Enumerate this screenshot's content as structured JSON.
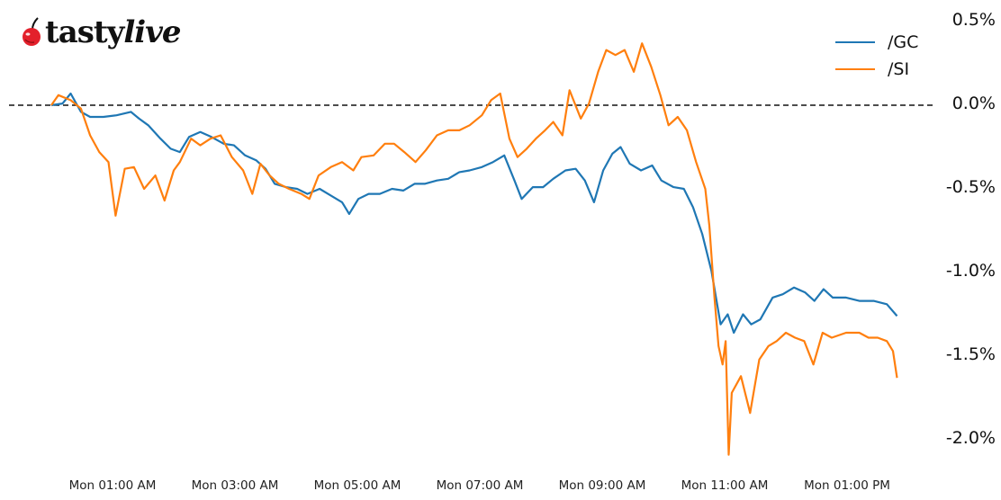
{
  "logo": {
    "icon": "cherry-icon",
    "text_regular": "tasty",
    "text_italic": "live",
    "cherry_color": "#e3202b"
  },
  "chart_data": {
    "type": "line",
    "title": "",
    "xlabel": "",
    "ylabel": "",
    "x_unit": "minutes since Mon 00:00 AM",
    "xlim": [
      -20,
      860
    ],
    "ylim": [
      -2.25,
      0.58
    ],
    "y_ticks": [
      0.5,
      0.0,
      -0.5,
      -1.0,
      -1.5,
      -2.0
    ],
    "y_tick_labels": [
      "0.5%",
      "0.0%",
      "-0.5%",
      "-1.0%",
      "-1.5%",
      "-2.0%"
    ],
    "y_axis_position": "right",
    "x_ticks": [
      60,
      180,
      300,
      420,
      540,
      660,
      780
    ],
    "x_tick_labels": [
      "Mon 01:00 AM",
      "Mon 03:00 AM",
      "Mon 05:00 AM",
      "Mon 07:00 AM",
      "Mon 09:00 AM",
      "Mon 11:00 AM",
      "Mon 01:00 PM"
    ],
    "reference_line": {
      "y": 0.0,
      "style": "dashed",
      "color": "#111111"
    },
    "grid": false,
    "legend_position": "upper right",
    "series": [
      {
        "name": "/GC",
        "color": "#1f77b4",
        "points": [
          [
            0,
            0.0
          ],
          [
            11,
            0.01
          ],
          [
            19,
            0.07
          ],
          [
            29,
            -0.04
          ],
          [
            38,
            -0.07
          ],
          [
            51,
            -0.07
          ],
          [
            64,
            -0.06
          ],
          [
            78,
            -0.04
          ],
          [
            86,
            -0.08
          ],
          [
            95,
            -0.12
          ],
          [
            107,
            -0.2
          ],
          [
            117,
            -0.26
          ],
          [
            126,
            -0.28
          ],
          [
            135,
            -0.19
          ],
          [
            146,
            -0.16
          ],
          [
            157,
            -0.19
          ],
          [
            169,
            -0.23
          ],
          [
            179,
            -0.24
          ],
          [
            190,
            -0.3
          ],
          [
            201,
            -0.33
          ],
          [
            210,
            -0.38
          ],
          [
            219,
            -0.47
          ],
          [
            230,
            -0.49
          ],
          [
            241,
            -0.5
          ],
          [
            251,
            -0.53
          ],
          [
            263,
            -0.5
          ],
          [
            274,
            -0.54
          ],
          [
            285,
            -0.58
          ],
          [
            292,
            -0.65
          ],
          [
            301,
            -0.56
          ],
          [
            311,
            -0.53
          ],
          [
            322,
            -0.53
          ],
          [
            334,
            -0.5
          ],
          [
            345,
            -0.51
          ],
          [
            356,
            -0.47
          ],
          [
            366,
            -0.47
          ],
          [
            378,
            -0.45
          ],
          [
            389,
            -0.44
          ],
          [
            400,
            -0.4
          ],
          [
            410,
            -0.39
          ],
          [
            422,
            -0.37
          ],
          [
            433,
            -0.34
          ],
          [
            444,
            -0.3
          ],
          [
            454,
            -0.45
          ],
          [
            461,
            -0.56
          ],
          [
            472,
            -0.49
          ],
          [
            482,
            -0.49
          ],
          [
            492,
            -0.44
          ],
          [
            504,
            -0.39
          ],
          [
            514,
            -0.38
          ],
          [
            523,
            -0.45
          ],
          [
            532,
            -0.58
          ],
          [
            541,
            -0.39
          ],
          [
            550,
            -0.29
          ],
          [
            558,
            -0.25
          ],
          [
            567,
            -0.35
          ],
          [
            578,
            -0.39
          ],
          [
            589,
            -0.36
          ],
          [
            598,
            -0.45
          ],
          [
            610,
            -0.49
          ],
          [
            620,
            -0.5
          ],
          [
            629,
            -0.61
          ],
          [
            638,
            -0.77
          ],
          [
            647,
            -0.99
          ],
          [
            656,
            -1.31
          ],
          [
            663,
            -1.25
          ],
          [
            669,
            -1.36
          ],
          [
            678,
            -1.25
          ],
          [
            686,
            -1.31
          ],
          [
            695,
            -1.28
          ],
          [
            707,
            -1.15
          ],
          [
            717,
            -1.13
          ],
          [
            728,
            -1.09
          ],
          [
            739,
            -1.12
          ],
          [
            748,
            -1.17
          ],
          [
            757,
            -1.1
          ],
          [
            766,
            -1.15
          ],
          [
            779,
            -1.15
          ],
          [
            792,
            -1.17
          ],
          [
            806,
            -1.17
          ],
          [
            819,
            -1.19
          ],
          [
            829,
            -1.26
          ]
        ]
      },
      {
        "name": "/SI",
        "color": "#ff7f0e",
        "points": [
          [
            0,
            0.0
          ],
          [
            7,
            0.06
          ],
          [
            19,
            0.03
          ],
          [
            29,
            -0.02
          ],
          [
            38,
            -0.18
          ],
          [
            47,
            -0.28
          ],
          [
            56,
            -0.34
          ],
          [
            63,
            -0.66
          ],
          [
            72,
            -0.38
          ],
          [
            81,
            -0.37
          ],
          [
            91,
            -0.5
          ],
          [
            102,
            -0.42
          ],
          [
            111,
            -0.57
          ],
          [
            120,
            -0.39
          ],
          [
            126,
            -0.34
          ],
          [
            137,
            -0.2
          ],
          [
            146,
            -0.24
          ],
          [
            156,
            -0.2
          ],
          [
            166,
            -0.18
          ],
          [
            177,
            -0.31
          ],
          [
            188,
            -0.39
          ],
          [
            197,
            -0.53
          ],
          [
            205,
            -0.35
          ],
          [
            214,
            -0.42
          ],
          [
            223,
            -0.47
          ],
          [
            233,
            -0.5
          ],
          [
            245,
            -0.53
          ],
          [
            253,
            -0.56
          ],
          [
            262,
            -0.42
          ],
          [
            274,
            -0.37
          ],
          [
            285,
            -0.34
          ],
          [
            296,
            -0.39
          ],
          [
            304,
            -0.31
          ],
          [
            316,
            -0.3
          ],
          [
            327,
            -0.23
          ],
          [
            336,
            -0.23
          ],
          [
            346,
            -0.28
          ],
          [
            357,
            -0.34
          ],
          [
            367,
            -0.27
          ],
          [
            378,
            -0.18
          ],
          [
            389,
            -0.15
          ],
          [
            400,
            -0.15
          ],
          [
            410,
            -0.12
          ],
          [
            422,
            -0.06
          ],
          [
            431,
            0.03
          ],
          [
            440,
            0.07
          ],
          [
            449,
            -0.2
          ],
          [
            457,
            -0.31
          ],
          [
            466,
            -0.26
          ],
          [
            475,
            -0.2
          ],
          [
            484,
            -0.15
          ],
          [
            492,
            -0.1
          ],
          [
            501,
            -0.18
          ],
          [
            508,
            0.09
          ],
          [
            519,
            -0.08
          ],
          [
            527,
            0.01
          ],
          [
            536,
            0.2
          ],
          [
            544,
            0.33
          ],
          [
            553,
            0.3
          ],
          [
            562,
            0.33
          ],
          [
            571,
            0.2
          ],
          [
            579,
            0.37
          ],
          [
            588,
            0.23
          ],
          [
            597,
            0.06
          ],
          [
            605,
            -0.12
          ],
          [
            614,
            -0.07
          ],
          [
            623,
            -0.15
          ],
          [
            632,
            -0.34
          ],
          [
            641,
            -0.5
          ],
          [
            645,
            -0.72
          ],
          [
            650,
            -1.15
          ],
          [
            654,
            -1.44
          ],
          [
            658,
            -1.55
          ],
          [
            661,
            -1.41
          ],
          [
            664,
            -2.09
          ],
          [
            667,
            -1.72
          ],
          [
            676,
            -1.62
          ],
          [
            685,
            -1.84
          ],
          [
            694,
            -1.52
          ],
          [
            703,
            -1.44
          ],
          [
            711,
            -1.41
          ],
          [
            720,
            -1.36
          ],
          [
            729,
            -1.39
          ],
          [
            738,
            -1.41
          ],
          [
            747,
            -1.55
          ],
          [
            756,
            -1.36
          ],
          [
            765,
            -1.39
          ],
          [
            779,
            -1.36
          ],
          [
            792,
            -1.36
          ],
          [
            801,
            -1.39
          ],
          [
            810,
            -1.39
          ],
          [
            819,
            -1.41
          ],
          [
            825,
            -1.47
          ],
          [
            829,
            -1.63
          ]
        ]
      }
    ]
  }
}
